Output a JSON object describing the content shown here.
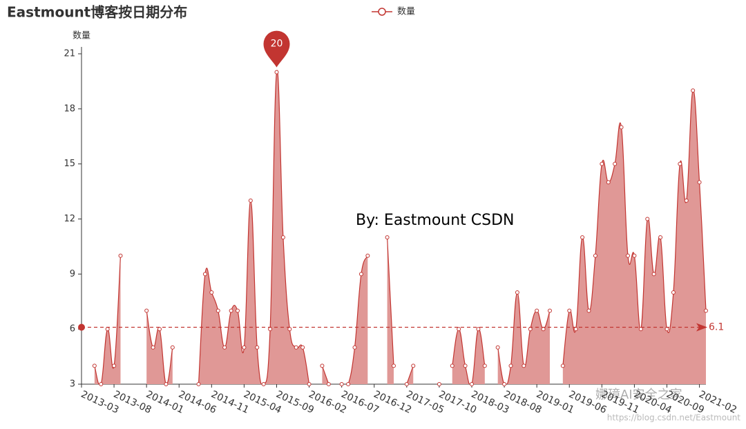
{
  "chart_data": {
    "type": "line",
    "title": "Eastmount博客按日期分布",
    "y_axis_label": "数量",
    "annotation": "By:  Eastmount CSDN",
    "watermarks": [
      "娜璋AI安全之家",
      "https://blog.csdn.net/Eastmount"
    ],
    "categories": [
      "2013-03",
      null,
      null,
      null,
      null,
      "2013-08",
      null,
      null,
      null,
      null,
      "2014-01",
      null,
      null,
      null,
      null,
      "2014-06",
      null,
      null,
      null,
      null,
      "2014-11",
      null,
      null,
      null,
      null,
      "2015-04",
      null,
      null,
      null,
      null,
      "2015-09",
      null,
      null,
      null,
      null,
      "2016-02",
      null,
      null,
      null,
      null,
      "2016-07",
      null,
      null,
      null,
      null,
      "2016-12",
      null,
      null,
      null,
      null,
      "2017-05",
      null,
      null,
      null,
      null,
      "2017-10",
      null,
      null,
      null,
      null,
      "2018-03",
      null,
      null,
      null,
      null,
      "2018-08",
      null,
      null,
      null,
      null,
      "2019-01",
      null,
      null,
      null,
      null,
      "2019-06",
      null,
      null,
      null,
      null,
      "2019-11",
      null,
      null,
      null,
      null,
      "2020-04",
      null,
      null,
      null,
      null,
      "2020-09",
      null,
      null,
      null,
      null,
      "2021-02",
      null
    ],
    "series": [
      {
        "name": "数量",
        "color": "#c23531",
        "area_color": "#e09896",
        "values": [
          null,
          null,
          4,
          3,
          6,
          4,
          10,
          null,
          null,
          null,
          7,
          5,
          6,
          3,
          5,
          null,
          null,
          null,
          3,
          9,
          8,
          7,
          5,
          7,
          7,
          5,
          13,
          5,
          3,
          6,
          20,
          11,
          6,
          5,
          5,
          3,
          null,
          4,
          3,
          null,
          3,
          3,
          5,
          9,
          10,
          null,
          null,
          11,
          4,
          null,
          3,
          4,
          null,
          null,
          null,
          3,
          null,
          4,
          6,
          4,
          3,
          6,
          4,
          null,
          5,
          3,
          4,
          8,
          4,
          6,
          7,
          6,
          7,
          null,
          4,
          7,
          6,
          11,
          7,
          10,
          15,
          14,
          15,
          17,
          10,
          10,
          6,
          12,
          9,
          11,
          6,
          8,
          15,
          13,
          19,
          14,
          7
        ]
      }
    ],
    "max_marker": 20,
    "average_line": 6.1,
    "ylim": [
      3,
      21
    ],
    "yticks": [
      3,
      6,
      9,
      12,
      15,
      18,
      21
    ],
    "grid": false
  }
}
